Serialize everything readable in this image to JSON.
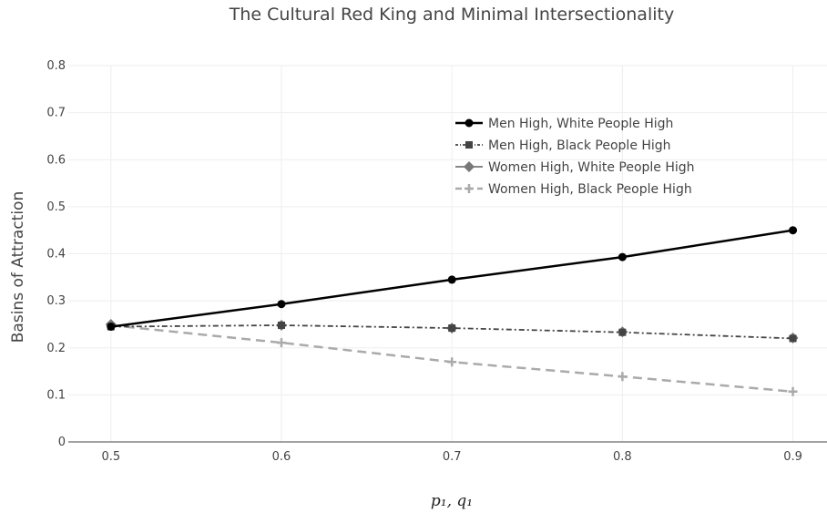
{
  "chart_data": {
    "type": "line",
    "title": "The Cultural Red King and Minimal Intersectionality",
    "xlabel": "p₁, q₁",
    "ylabel": "Basins of Attraction",
    "x": [
      0.5,
      0.6,
      0.7,
      0.8,
      0.9
    ],
    "xticks": [
      "0.5",
      "0.6",
      "0.7",
      "0.8",
      "0.9"
    ],
    "yticks": [
      "0",
      "0.1",
      "0.2",
      "0.3",
      "0.4",
      "0.5",
      "0.6",
      "0.7",
      "0.8"
    ],
    "xlim": [
      0.475,
      0.92
    ],
    "ylim": [
      0,
      0.8
    ],
    "grid": true,
    "legend_position": "top-right",
    "series": [
      {
        "name": "Men High, White People High",
        "values": [
          0.245,
          0.293,
          0.345,
          0.393,
          0.45
        ],
        "color": "#000000",
        "dash": "solid",
        "marker": "circle"
      },
      {
        "name": "Men High, Black People High",
        "values": [
          0.245,
          0.248,
          0.242,
          0.233,
          0.22
        ],
        "color": "#444444",
        "dash": "dashdot",
        "marker": "square"
      },
      {
        "name": "Women High, White People High",
        "values": [
          0.25,
          0.248,
          0.242,
          0.234,
          0.221
        ],
        "color": "#777777",
        "dash": "none",
        "marker": "diamond"
      },
      {
        "name": "Women High, Black People High",
        "values": [
          0.248,
          0.211,
          0.17,
          0.139,
          0.107
        ],
        "color": "#aaaaaa",
        "dash": "dash",
        "marker": "cross"
      }
    ]
  }
}
